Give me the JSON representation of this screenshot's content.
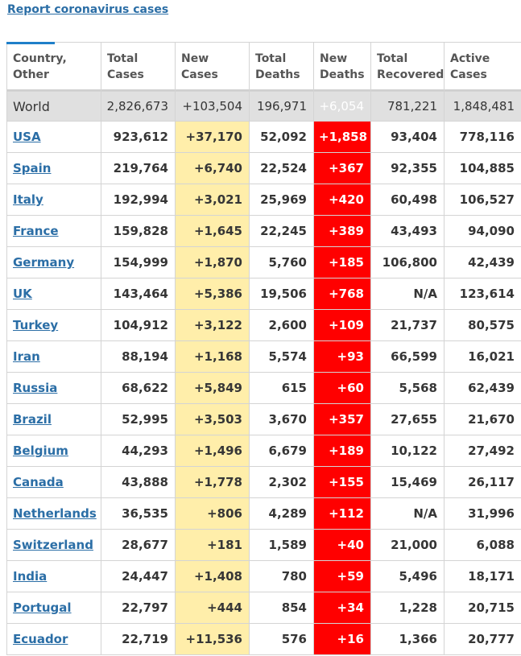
{
  "report_link": "Report coronavirus cases",
  "colors": {
    "link": "#2b6ea6",
    "new_cases_bg": "#ffeeaa",
    "new_deaths_bg": "#ff0000",
    "world_bg": "#e0e0e0"
  },
  "headers": [
    {
      "line1": "Country,",
      "line2": "Other"
    },
    {
      "line1": "Total",
      "line2": "Cases"
    },
    {
      "line1": "New",
      "line2": "Cases"
    },
    {
      "line1": "Total",
      "line2": "Deaths"
    },
    {
      "line1": "New",
      "line2": "Deaths"
    },
    {
      "line1": "Total",
      "line2": "Recovered"
    },
    {
      "line1": "Active",
      "line2": "Cases"
    }
  ],
  "world": {
    "country": "World",
    "total_cases": "2,826,673",
    "new_cases": "+103,504",
    "total_deaths": "196,971",
    "new_deaths": "+6,054",
    "total_recovered": "781,221",
    "active_cases": "1,848,481"
  },
  "rows": [
    {
      "country": "USA",
      "total_cases": "923,612",
      "new_cases": "+37,170",
      "total_deaths": "52,092",
      "new_deaths": "+1,858",
      "total_recovered": "93,404",
      "active_cases": "778,116"
    },
    {
      "country": "Spain",
      "total_cases": "219,764",
      "new_cases": "+6,740",
      "total_deaths": "22,524",
      "new_deaths": "+367",
      "total_recovered": "92,355",
      "active_cases": "104,885"
    },
    {
      "country": "Italy",
      "total_cases": "192,994",
      "new_cases": "+3,021",
      "total_deaths": "25,969",
      "new_deaths": "+420",
      "total_recovered": "60,498",
      "active_cases": "106,527"
    },
    {
      "country": "France",
      "total_cases": "159,828",
      "new_cases": "+1,645",
      "total_deaths": "22,245",
      "new_deaths": "+389",
      "total_recovered": "43,493",
      "active_cases": "94,090"
    },
    {
      "country": "Germany",
      "total_cases": "154,999",
      "new_cases": "+1,870",
      "total_deaths": "5,760",
      "new_deaths": "+185",
      "total_recovered": "106,800",
      "active_cases": "42,439"
    },
    {
      "country": "UK",
      "total_cases": "143,464",
      "new_cases": "+5,386",
      "total_deaths": "19,506",
      "new_deaths": "+768",
      "total_recovered": "N/A",
      "active_cases": "123,614"
    },
    {
      "country": "Turkey",
      "total_cases": "104,912",
      "new_cases": "+3,122",
      "total_deaths": "2,600",
      "new_deaths": "+109",
      "total_recovered": "21,737",
      "active_cases": "80,575"
    },
    {
      "country": "Iran",
      "total_cases": "88,194",
      "new_cases": "+1,168",
      "total_deaths": "5,574",
      "new_deaths": "+93",
      "total_recovered": "66,599",
      "active_cases": "16,021"
    },
    {
      "country": "Russia",
      "total_cases": "68,622",
      "new_cases": "+5,849",
      "total_deaths": "615",
      "new_deaths": "+60",
      "total_recovered": "5,568",
      "active_cases": "62,439"
    },
    {
      "country": "Brazil",
      "total_cases": "52,995",
      "new_cases": "+3,503",
      "total_deaths": "3,670",
      "new_deaths": "+357",
      "total_recovered": "27,655",
      "active_cases": "21,670"
    },
    {
      "country": "Belgium",
      "total_cases": "44,293",
      "new_cases": "+1,496",
      "total_deaths": "6,679",
      "new_deaths": "+189",
      "total_recovered": "10,122",
      "active_cases": "27,492"
    },
    {
      "country": "Canada",
      "total_cases": "43,888",
      "new_cases": "+1,778",
      "total_deaths": "2,302",
      "new_deaths": "+155",
      "total_recovered": "15,469",
      "active_cases": "26,117"
    },
    {
      "country": "Netherlands",
      "total_cases": "36,535",
      "new_cases": "+806",
      "total_deaths": "4,289",
      "new_deaths": "+112",
      "total_recovered": "N/A",
      "active_cases": "31,996"
    },
    {
      "country": "Switzerland",
      "total_cases": "28,677",
      "new_cases": "+181",
      "total_deaths": "1,589",
      "new_deaths": "+40",
      "total_recovered": "21,000",
      "active_cases": "6,088"
    },
    {
      "country": "India",
      "total_cases": "24,447",
      "new_cases": "+1,408",
      "total_deaths": "780",
      "new_deaths": "+59",
      "total_recovered": "5,496",
      "active_cases": "18,171"
    },
    {
      "country": "Portugal",
      "total_cases": "22,797",
      "new_cases": "+444",
      "total_deaths": "854",
      "new_deaths": "+34",
      "total_recovered": "1,228",
      "active_cases": "20,715"
    },
    {
      "country": "Ecuador",
      "total_cases": "22,719",
      "new_cases": "+11,536",
      "total_deaths": "576",
      "new_deaths": "+16",
      "total_recovered": "1,366",
      "active_cases": "20,777"
    }
  ]
}
